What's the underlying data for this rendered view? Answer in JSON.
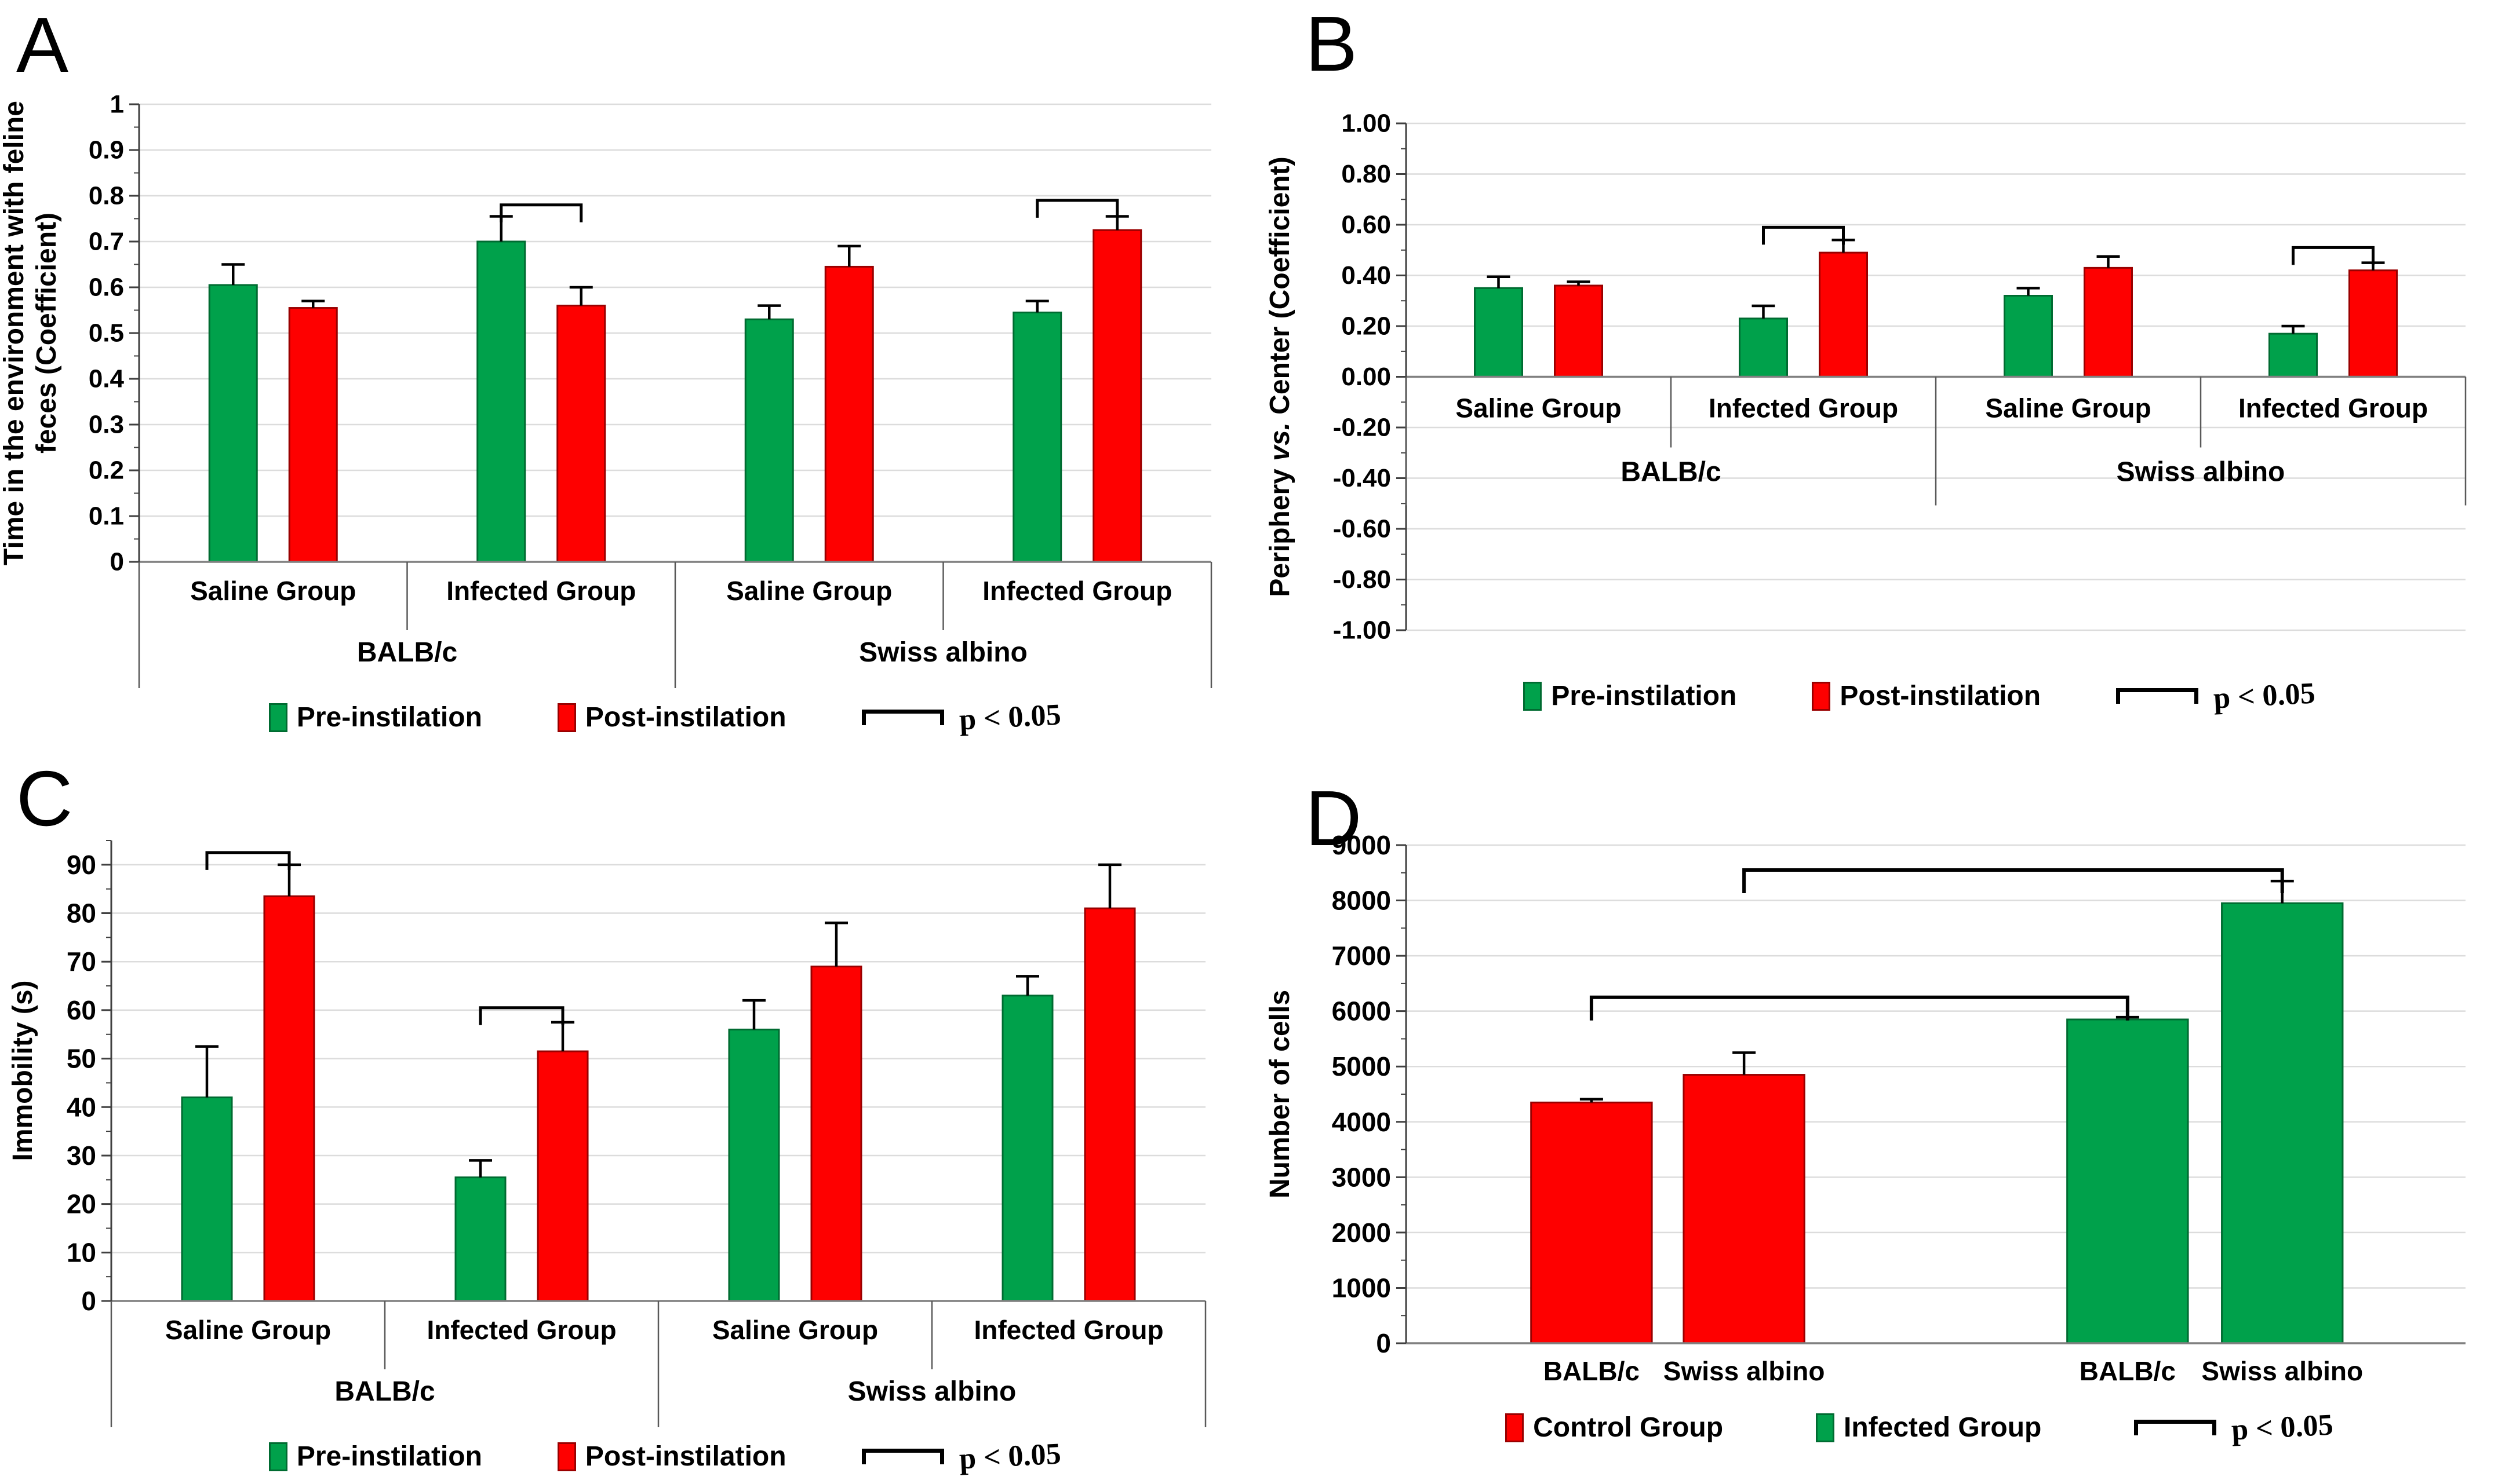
{
  "colors": {
    "green": "#00A14B",
    "green_border": "#006B31",
    "red": "#FE0000",
    "red_border": "#990000",
    "grid": "#DCDCDC",
    "axis_line": "#808080",
    "tick": "#404040",
    "text": "#000000"
  },
  "panels": {
    "A": {
      "letter": "A",
      "legend": [
        {
          "color": "green",
          "label": "Pre-instilation"
        },
        {
          "color": "red",
          "label": "Post-instilation"
        }
      ],
      "sig_label": "p < 0.05"
    },
    "B": {
      "letter": "B",
      "legend": [
        {
          "color": "green",
          "label": "Pre-instilation"
        },
        {
          "color": "red",
          "label": "Post-instilation"
        }
      ],
      "sig_label": "p < 0.05"
    },
    "C": {
      "letter": "C",
      "legend": [
        {
          "color": "green",
          "label": "Pre-instilation"
        },
        {
          "color": "red",
          "label": "Post-instilation"
        }
      ],
      "sig_label": "p < 0.05"
    },
    "D": {
      "letter": "D",
      "legend": [
        {
          "color": "red",
          "label": "Control Group"
        },
        {
          "color": "green",
          "label": "Infected Group"
        }
      ],
      "sig_label": "p < 0.05"
    }
  },
  "chart_data": [
    {
      "panel": "A",
      "type": "bar",
      "ylabel_lines": [
        "Time in the environment with feline",
        "feces (Coefficient)"
      ],
      "ylim": [
        0,
        1
      ],
      "plot_ymax": 1,
      "baseline": 0,
      "yticks": [
        0,
        0.1,
        0.2,
        0.3,
        0.4,
        0.5,
        0.6,
        0.7,
        0.8,
        0.9,
        1
      ],
      "ytick_labels": [
        "0",
        "0.1",
        "0.2",
        "0.3",
        "0.4",
        "0.5",
        "0.6",
        "0.7",
        "0.8",
        "0.9",
        "1"
      ],
      "yminor_step": 0.05,
      "grid": true,
      "legend_position": "bottom",
      "categories": [
        "Saline Group",
        "Infected Group",
        "Saline Group",
        "Infected Group"
      ],
      "group_labels": [
        {
          "label": "BALB/c",
          "from": 0,
          "to": 1
        },
        {
          "label": "Swiss albino",
          "from": 2,
          "to": 3
        }
      ],
      "series": [
        {
          "name": "Pre-instilation",
          "color": "green",
          "values": [
            0.605,
            0.7,
            0.53,
            0.545
          ],
          "errors": [
            0.045,
            0.055,
            0.03,
            0.025
          ]
        },
        {
          "name": "Post-instilation",
          "color": "red",
          "values": [
            0.555,
            0.56,
            0.645,
            0.725
          ],
          "errors": [
            0.015,
            0.04,
            0.045,
            0.03
          ]
        }
      ],
      "sig_brackets": [
        {
          "cluster": 1,
          "y": 0.78
        },
        {
          "cluster": 3,
          "y": 0.79
        }
      ]
    },
    {
      "panel": "B",
      "type": "bar",
      "ylabel_lines": [
        "Periphery vs. Center (Coefficient)"
      ],
      "ylim": [
        -1,
        1
      ],
      "plot_ymax": 1,
      "baseline": 0,
      "yticks": [
        -1,
        -0.8,
        -0.6,
        -0.4,
        -0.2,
        0,
        0.2,
        0.4,
        0.6,
        0.8,
        1
      ],
      "ytick_labels": [
        "-1.00",
        "-0.80",
        "-0.60",
        "-0.40",
        "-0.20",
        "0.00",
        "0.20",
        "0.40",
        "0.60",
        "0.80",
        "1.00"
      ],
      "yminor_step": 0.1,
      "grid": true,
      "legend_position": "bottom",
      "categories": [
        "Saline Group",
        "Infected Group",
        "Saline Group",
        "Infected Group"
      ],
      "group_labels": [
        {
          "label": "BALB/c",
          "from": 0,
          "to": 1
        },
        {
          "label": "Swiss albino",
          "from": 2,
          "to": 3
        }
      ],
      "series": [
        {
          "name": "Pre-instilation",
          "color": "green",
          "values": [
            0.35,
            0.23,
            0.32,
            0.17
          ],
          "errors": [
            0.045,
            0.05,
            0.03,
            0.03
          ]
        },
        {
          "name": "Post-instilation",
          "color": "red",
          "values": [
            0.36,
            0.49,
            0.43,
            0.42
          ],
          "errors": [
            0.015,
            0.05,
            0.045,
            0.03
          ]
        }
      ],
      "sig_brackets": [
        {
          "cluster": 1,
          "y": 0.59
        },
        {
          "cluster": 3,
          "y": 0.51
        }
      ]
    },
    {
      "panel": "C",
      "type": "bar",
      "ylabel_lines": [
        "Immobility (s)"
      ],
      "ylim": [
        0,
        90
      ],
      "plot_ymax": 95,
      "baseline": 0,
      "yticks": [
        0,
        10,
        20,
        30,
        40,
        50,
        60,
        70,
        80,
        90
      ],
      "ytick_labels": [
        "0",
        "10",
        "20",
        "30",
        "40",
        "50",
        "60",
        "70",
        "80",
        "90"
      ],
      "yminor_step": 5,
      "grid": true,
      "legend_position": "bottom",
      "categories": [
        "Saline Group",
        "Infected Group",
        "Saline Group",
        "Infected Group"
      ],
      "group_labels": [
        {
          "label": "BALB/c",
          "from": 0,
          "to": 1
        },
        {
          "label": "Swiss albino",
          "from": 2,
          "to": 3
        }
      ],
      "series": [
        {
          "name": "Pre-instilation",
          "color": "green",
          "values": [
            42,
            25.5,
            56,
            63
          ],
          "errors": [
            10.5,
            3.5,
            6,
            4
          ]
        },
        {
          "name": "Post-instilation",
          "color": "red",
          "values": [
            83.5,
            51.5,
            69,
            81
          ],
          "errors": [
            6.5,
            6,
            9,
            9
          ]
        }
      ],
      "sig_brackets": [
        {
          "cluster": 0,
          "y": 92.5
        },
        {
          "cluster": 1,
          "y": 60.5
        }
      ]
    },
    {
      "panel": "D",
      "type": "bar",
      "ylabel_lines": [
        "Number of cells"
      ],
      "ylim": [
        0,
        9000
      ],
      "plot_ymax": 9000,
      "baseline": 0,
      "yticks": [
        0,
        1000,
        2000,
        3000,
        4000,
        5000,
        6000,
        7000,
        8000,
        9000
      ],
      "ytick_labels": [
        "0",
        "1000",
        "2000",
        "3000",
        "4000",
        "5000",
        "6000",
        "7000",
        "8000",
        "9000"
      ],
      "yminor_step": 500,
      "grid": true,
      "legend_position": "bottom",
      "bar_width_frac": 0.114,
      "bars": [
        {
          "label": "BALB/c",
          "series": "Control Group",
          "color": "red",
          "value": 4350,
          "error": 60,
          "xfrac": 0.175
        },
        {
          "label": "Swiss albino",
          "series": "Control Group",
          "color": "red",
          "value": 4850,
          "error": 400,
          "xfrac": 0.319
        },
        {
          "label": "BALB/c",
          "series": "Infected Group",
          "color": "green",
          "value": 5850,
          "error": 40,
          "xfrac": 0.681
        },
        {
          "label": "Swiss albino",
          "series": "Infected Group",
          "color": "green",
          "value": 7950,
          "error": 400,
          "xfrac": 0.827
        }
      ],
      "sig_brackets": [
        {
          "from_bar": 0,
          "to_bar": 2,
          "y": 6250
        },
        {
          "from_bar": 1,
          "to_bar": 3,
          "y": 8550
        }
      ]
    }
  ]
}
